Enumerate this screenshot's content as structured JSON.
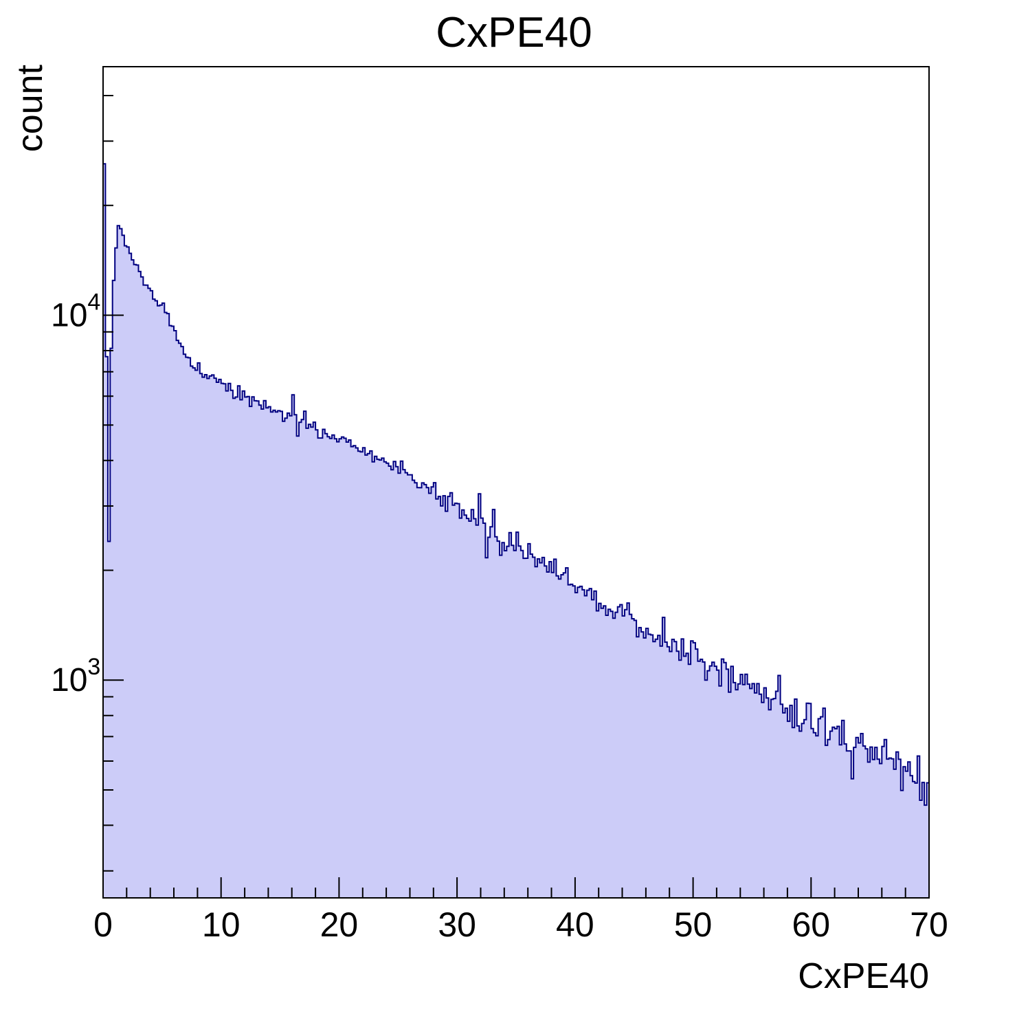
{
  "chart_data": {
    "type": "histogram",
    "title": "CxPE40",
    "xlabel": "CxPE40",
    "ylabel": "count",
    "xlim": [
      0,
      70
    ],
    "ylim": [
      253,
      48000
    ],
    "y_scale": "log",
    "grid": false,
    "legend": "none",
    "bins": 350,
    "bin_width": 0.2,
    "x_tick_major_step": 10,
    "x_tick_minor_step": 2,
    "x_tick_labels": [
      "0",
      "10",
      "20",
      "30",
      "40",
      "50",
      "60",
      "70"
    ],
    "y_tick_exponents": [
      3,
      4
    ],
    "colors": {
      "fill": "#ccccf8",
      "line": "#000080",
      "axis": "#000000",
      "background": "#ffffff"
    },
    "noise_scale": 1.6,
    "rng_seed": 20,
    "control_points": [
      [
        0.1,
        26000
      ],
      [
        0.3,
        7700
      ],
      [
        0.5,
        2400
      ],
      [
        0.7,
        8200
      ],
      [
        0.9,
        12500
      ],
      [
        1.1,
        15200
      ],
      [
        1.3,
        17500
      ],
      [
        1.5,
        17000
      ],
      [
        1.9,
        15800
      ],
      [
        2.3,
        14800
      ],
      [
        2.9,
        13500
      ],
      [
        3.5,
        12400
      ],
      [
        4.1,
        11400
      ],
      [
        4.7,
        10700
      ],
      [
        5.3,
        10400
      ],
      [
        5.7,
        9800
      ],
      [
        6.1,
        9000
      ],
      [
        6.7,
        8100
      ],
      [
        7.3,
        7500
      ],
      [
        8.0,
        7000
      ],
      [
        9.0,
        6700
      ],
      [
        10,
        6450
      ],
      [
        12,
        6000
      ],
      [
        14,
        5600
      ],
      [
        16,
        5300
      ],
      [
        18,
        4900
      ],
      [
        20,
        4550
      ],
      [
        22,
        4250
      ],
      [
        24,
        3950
      ],
      [
        26,
        3600
      ],
      [
        28,
        3300
      ],
      [
        30,
        2950
      ],
      [
        32,
        2700
      ],
      [
        34,
        2400
      ],
      [
        36,
        2200
      ],
      [
        38,
        2050
      ],
      [
        40,
        1850
      ],
      [
        42,
        1650
      ],
      [
        44,
        1500
      ],
      [
        46,
        1380
      ],
      [
        48,
        1270
      ],
      [
        50,
        1150
      ],
      [
        52,
        1060
      ],
      [
        54,
        980
      ],
      [
        56,
        900
      ],
      [
        58,
        830
      ],
      [
        60,
        770
      ],
      [
        62,
        710
      ],
      [
        64,
        660
      ],
      [
        66,
        610
      ],
      [
        68,
        560
      ],
      [
        70,
        520
      ]
    ],
    "outliers": [
      [
        8.1,
        1.1
      ],
      [
        16.1,
        1.12
      ],
      [
        16.5,
        0.9
      ],
      [
        17.1,
        1.1
      ],
      [
        25.3,
        1.06
      ],
      [
        31.9,
        1.22
      ],
      [
        32.5,
        0.82
      ],
      [
        33.1,
        1.16
      ],
      [
        33.7,
        0.86
      ],
      [
        35.1,
        1.08
      ],
      [
        44.5,
        1.08
      ],
      [
        57.3,
        1.1
      ],
      [
        63.5,
        0.85
      ],
      [
        66.3,
        1.15
      ],
      [
        67.7,
        0.85
      ],
      [
        69.3,
        0.9
      ]
    ]
  }
}
